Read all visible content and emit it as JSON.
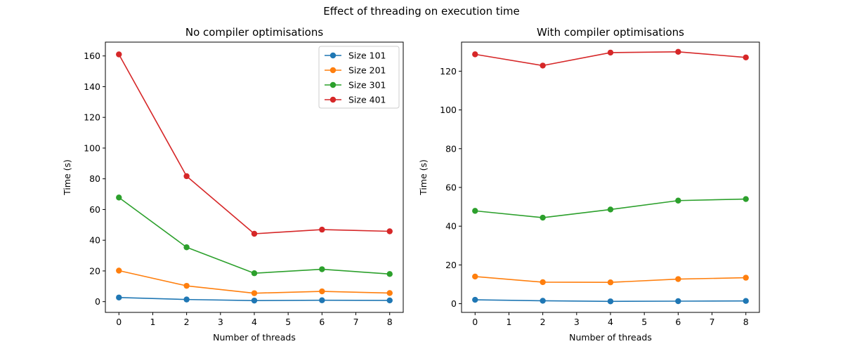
{
  "figure": {
    "suptitle": "Effect of threading on execution time"
  },
  "chart_data": [
    {
      "type": "line",
      "title": "No compiler optimisations",
      "xlabel": "Number of threads",
      "ylabel": "Time (s)",
      "xlim": [
        -0.4,
        8.4
      ],
      "ylim": [
        -7,
        169
      ],
      "xticks": [
        0,
        1,
        2,
        3,
        4,
        5,
        6,
        7,
        8
      ],
      "yticks": [
        0,
        20,
        40,
        60,
        80,
        100,
        120,
        140,
        160
      ],
      "x": [
        0,
        2,
        4,
        6,
        8
      ],
      "legend": "top-right",
      "grid": false,
      "series": [
        {
          "name": "Size 101",
          "color": "#1f77b4",
          "values": [
            2.7,
            1.4,
            0.7,
            0.9,
            0.8
          ]
        },
        {
          "name": "Size 201",
          "color": "#ff7f0e",
          "values": [
            20.2,
            10.3,
            5.5,
            6.7,
            5.6
          ]
        },
        {
          "name": "Size 301",
          "color": "#2ca02c",
          "values": [
            67.8,
            35.4,
            18.5,
            21.1,
            18.0
          ]
        },
        {
          "name": "Size 401",
          "color": "#d62728",
          "values": [
            161.0,
            81.7,
            44.2,
            46.9,
            45.8
          ]
        }
      ]
    },
    {
      "type": "line",
      "title": "With compiler optimisations",
      "xlabel": "Number of threads",
      "ylabel": "Time (s)",
      "xlim": [
        -0.4,
        8.4
      ],
      "ylim": [
        -4.5,
        135
      ],
      "xticks": [
        0,
        1,
        2,
        3,
        4,
        5,
        6,
        7,
        8
      ],
      "yticks": [
        0,
        20,
        40,
        60,
        80,
        100,
        120
      ],
      "x": [
        0,
        2,
        4,
        6,
        8
      ],
      "grid": false,
      "series": [
        {
          "name": "Size 101",
          "color": "#1f77b4",
          "values": [
            2.0,
            1.5,
            1.2,
            1.3,
            1.4
          ]
        },
        {
          "name": "Size 201",
          "color": "#ff7f0e",
          "values": [
            14.0,
            11.1,
            11.0,
            12.7,
            13.4
          ]
        },
        {
          "name": "Size 301",
          "color": "#2ca02c",
          "values": [
            47.9,
            44.4,
            48.6,
            53.2,
            54.0
          ]
        },
        {
          "name": "Size 401",
          "color": "#d62728",
          "values": [
            128.7,
            122.9,
            129.6,
            130.0,
            127.1
          ]
        }
      ]
    }
  ]
}
